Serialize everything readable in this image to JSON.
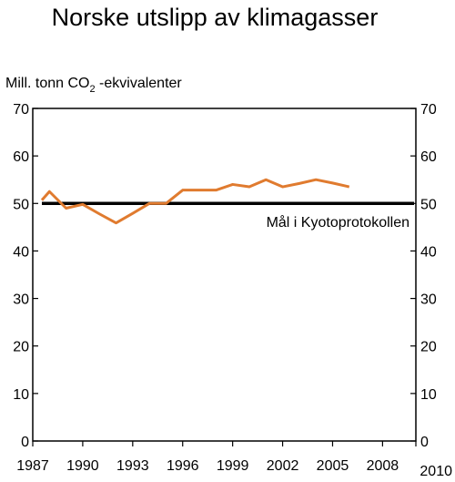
{
  "chart_data": {
    "type": "line",
    "title": "Norske utslipp av klimagasser",
    "ylabel_prefix": "Mill. tonn CO",
    "ylabel_sub": "2",
    "ylabel_suffix": " -ekvivalenter",
    "xlim": [
      1987,
      2010
    ],
    "ylim": [
      0,
      70
    ],
    "x_ticks": [
      1987,
      1990,
      1993,
      1996,
      1999,
      2002,
      2005,
      2008,
      2010
    ],
    "y_ticks": [
      0,
      10,
      20,
      30,
      40,
      50,
      60,
      70
    ],
    "grid": false,
    "series": [
      {
        "color": "#e07b2f",
        "x": [
          1987,
          1988,
          1989,
          1990,
          1991,
          1992,
          1993,
          1994,
          1995,
          1996,
          1997,
          1998,
          1999,
          2000,
          2001,
          2002,
          2003,
          2004,
          2005,
          2006
        ],
        "values": [
          50.7,
          52.5,
          49.0,
          49.8,
          47.8,
          45.9,
          47.9,
          50.0,
          50.0,
          52.8,
          52.8,
          52.8,
          54.0,
          53.5,
          55.0,
          53.5,
          54.2,
          55.0,
          54.3,
          53.5
        ]
      }
    ],
    "reference_line": {
      "value": 50,
      "label": "Mål i Kyotoprotokollen",
      "color": "#000000"
    }
  }
}
